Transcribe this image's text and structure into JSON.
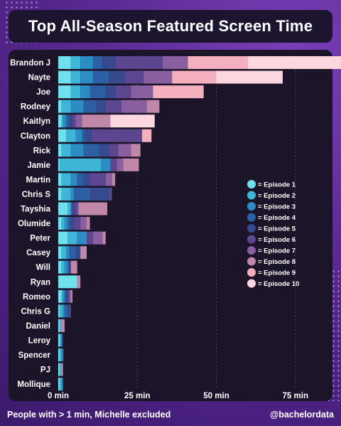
{
  "title": "Top All-Season Featured Screen Time",
  "footer": {
    "note": "People with > 1 min, Michelle excluded",
    "handle": "@bachelordata"
  },
  "colors": {
    "background": "#5a2a8c",
    "panel": "#1c1429",
    "text": "#ffffff",
    "episodes": [
      "#6fe0ec",
      "#3fb6d8",
      "#2c8cc4",
      "#2d5fa3",
      "#354a8f",
      "#5d4690",
      "#8a5f9f",
      "#c087a8",
      "#f5b0bd",
      "#fcd7df"
    ]
  },
  "chart_data": {
    "type": "bar",
    "orientation": "horizontal",
    "stacked": true,
    "title": "Top All-Season Featured Screen Time",
    "xlabel": "",
    "ylabel": "",
    "xlim": [
      0,
      90
    ],
    "xticks": [
      0,
      25,
      50,
      75
    ],
    "xtick_labels": [
      "0 min",
      "25 min",
      "50 min",
      "75 min"
    ],
    "grid": true,
    "legend_position": "right",
    "categories": [
      "Brandon J",
      "Nayte",
      "Joe",
      "Rodney",
      "Kaitlyn",
      "Clayton",
      "Rick",
      "Jamie",
      "Martin",
      "Chris S",
      "Tayshia",
      "Olumide",
      "Peter",
      "Casey",
      "Will",
      "Ryan",
      "Romeo",
      "Chris G",
      "Daniel",
      "Leroy",
      "Spencer",
      "PJ",
      "Mollique"
    ],
    "series": [
      {
        "name": "= Episode 1",
        "values": [
          4,
          4,
          4,
          1,
          1,
          2.5,
          1,
          0.5,
          1,
          1,
          3,
          1,
          3,
          1,
          1,
          6,
          1,
          0.5,
          0.5,
          0.5,
          0.5,
          0.5,
          0.5
        ]
      },
      {
        "name": "= Episode 2",
        "values": [
          3,
          3,
          3,
          3,
          0.5,
          3,
          3,
          13,
          3,
          3,
          1,
          1,
          3,
          1.5,
          1,
          0,
          0.5,
          1,
          0.5,
          0.5,
          0.5,
          0.5,
          0.5
        ]
      },
      {
        "name": "= Episode 3",
        "values": [
          4,
          4,
          3,
          4,
          1,
          2,
          4,
          3,
          2,
          1,
          0,
          1,
          3,
          1,
          1,
          0,
          0.5,
          0.5,
          0,
          0,
          0.5,
          0,
          0.5
        ]
      },
      {
        "name": "= Episode 4",
        "values": [
          3,
          5,
          5,
          4,
          1,
          1,
          5,
          0,
          2,
          5,
          0.5,
          1,
          0,
          2,
          0.5,
          0,
          0.5,
          1,
          0,
          0.3,
          0.2,
          0,
          0
        ]
      },
      {
        "name": "= Episode 5",
        "values": [
          4,
          5,
          3,
          3,
          1,
          2,
          3,
          0,
          2,
          6,
          0.5,
          1,
          0,
          1.5,
          0.3,
          0,
          0.5,
          0.5,
          0,
          0.2,
          0,
          0,
          0
        ]
      },
      {
        "name": "= Episode 6",
        "values": [
          15,
          6,
          5,
          5,
          1,
          16,
          3,
          2,
          5,
          1,
          1,
          2,
          2,
          0,
          0.2,
          0,
          0.5,
          0.5,
          0,
          0,
          0,
          0,
          0
        ]
      },
      {
        "name": "= Episode 7",
        "values": [
          8,
          9,
          7,
          8,
          2,
          0,
          4,
          2,
          2,
          0,
          0.5,
          2,
          3,
          0,
          0,
          0,
          0.5,
          0,
          0,
          0,
          0,
          0,
          0
        ]
      },
      {
        "name": "= Episode 8",
        "values": [
          0,
          0,
          0,
          4,
          9,
          0,
          3,
          5,
          1,
          0,
          9,
          1,
          1,
          2,
          2,
          1,
          0.5,
          0,
          1,
          0,
          0,
          0.5,
          0
        ]
      },
      {
        "name": "= Episode 9",
        "values": [
          19,
          14,
          16,
          0,
          0,
          3,
          0,
          0,
          0,
          0,
          0,
          0,
          0,
          0,
          0,
          0,
          0,
          0,
          0,
          0,
          0,
          0,
          0
        ]
      },
      {
        "name": "= Episode 10",
        "values": [
          31,
          21,
          0,
          0,
          14,
          0,
          0,
          0,
          0,
          0,
          0,
          0,
          0,
          0,
          0,
          0,
          0,
          0,
          0,
          0,
          0,
          0,
          0
        ]
      }
    ]
  }
}
